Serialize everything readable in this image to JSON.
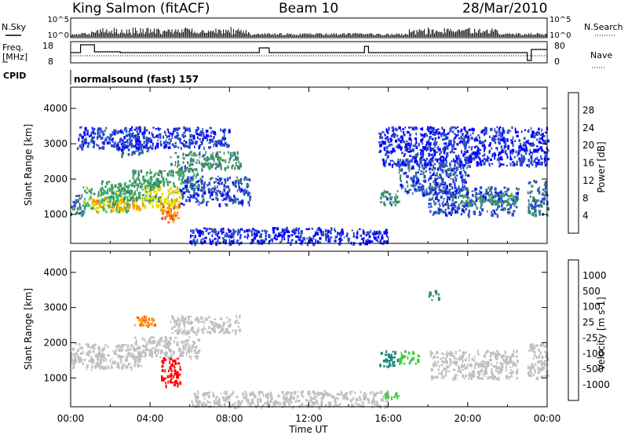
{
  "header": {
    "site": "King Salmon (fitACF)",
    "beam": "Beam 10",
    "date": "28/Mar/2010"
  },
  "aux_panels": {
    "nsky_label": "N.Sky",
    "nsearch_label": "N.Search",
    "noise_ticks_left": [
      "10^5",
      "10^0"
    ],
    "noise_ticks_right": [
      "10^5",
      "10^0"
    ],
    "freq_label_line1": "Freq.",
    "freq_label_line2": "[MHz]",
    "freq_ticks": [
      "18",
      "8"
    ],
    "nave_label": "Nave",
    "nave_ticks": [
      "80",
      "0"
    ],
    "cpid_label": "CPID",
    "cpid_text": "normalsound (fast) 157"
  },
  "colors": {
    "power_scale": [
      "#0000ff",
      "#2c4ec8",
      "#3c8a6a",
      "#40b060",
      "#f0e000",
      "#ff9a00",
      "#ff5000",
      "#ff0000"
    ],
    "velocity_scale": [
      "#ff0000",
      "#ff5a00",
      "#ffa000",
      "#c0c0c0",
      "#c0c0c0",
      "#40d040",
      "#208a7a",
      "#2a3ab0",
      "#0000dd"
    ],
    "ground_scatter": "#c0c0c0"
  },
  "chart_data": [
    {
      "type": "heatmap",
      "name_panel": "power",
      "xlabel": "",
      "ylabel": "Slant Range [km]",
      "x_ticks": [
        "00:00",
        "04:00",
        "08:00",
        "12:00",
        "16:00",
        "20:00",
        "00:00"
      ],
      "y_ticks": [
        "1000",
        "2000",
        "3000",
        "4000"
      ],
      "xlim_hours": [
        0,
        24
      ],
      "ylim_km": [
        180,
        4600
      ],
      "colorbar": {
        "label": "Power [dB]",
        "ticks": [
          "4",
          "8",
          "12",
          "16",
          "20",
          "24",
          "28"
        ],
        "range": [
          0,
          32
        ]
      },
      "regions": [
        {
          "t0": 0.0,
          "t1": 0.6,
          "r0": 1000,
          "r1": 1650,
          "v": 8
        },
        {
          "t0": 0.6,
          "t1": 3.0,
          "r0": 1100,
          "r1": 1800,
          "v": 14
        },
        {
          "t0": 1.0,
          "t1": 3.5,
          "r0": 1150,
          "r1": 1500,
          "v": 20
        },
        {
          "t0": 1.5,
          "t1": 4.5,
          "r0": 1400,
          "r1": 2000,
          "v": 12
        },
        {
          "t0": 3.5,
          "t1": 5.5,
          "r0": 1200,
          "r1": 1800,
          "v": 18
        },
        {
          "t0": 4.5,
          "t1": 5.5,
          "r0": 800,
          "r1": 1300,
          "v": 24
        },
        {
          "t0": 3.0,
          "t1": 6.5,
          "r0": 1800,
          "r1": 2300,
          "v": 12
        },
        {
          "t0": 5.0,
          "t1": 8.5,
          "r0": 2300,
          "r1": 2800,
          "v": 10
        },
        {
          "t0": 2.5,
          "t1": 4.0,
          "r0": 2700,
          "r1": 3300,
          "v": 6
        },
        {
          "t0": 0.3,
          "t1": 8.0,
          "r0": 2900,
          "r1": 3500,
          "v": 5
        },
        {
          "t0": 5.5,
          "t1": 9.0,
          "r0": 1300,
          "r1": 2100,
          "v": 6
        },
        {
          "t0": 6.0,
          "t1": 16.0,
          "r0": 200,
          "r1": 650,
          "v": 4
        },
        {
          "t0": 15.5,
          "t1": 16.5,
          "r0": 1300,
          "r1": 1700,
          "v": 10
        },
        {
          "t0": 16.5,
          "t1": 20.0,
          "r0": 1600,
          "r1": 2600,
          "v": 6
        },
        {
          "t0": 18.0,
          "t1": 22.5,
          "r0": 1000,
          "r1": 1800,
          "v": 6
        },
        {
          "t0": 19.5,
          "t1": 22.5,
          "r0": 1300,
          "r1": 1600,
          "v": 11
        },
        {
          "t0": 23.0,
          "t1": 24.0,
          "r0": 1000,
          "r1": 2000,
          "v": 8
        },
        {
          "t0": 15.5,
          "t1": 24.0,
          "r0": 2400,
          "r1": 3500,
          "v": 4
        }
      ]
    },
    {
      "type": "heatmap",
      "name_panel": "velocity",
      "xlabel": "Time UT",
      "ylabel": "Slant Range [km]",
      "x_ticks": [
        "00:00",
        "04:00",
        "08:00",
        "12:00",
        "16:00",
        "20:00",
        "00:00"
      ],
      "y_ticks": [
        "1000",
        "2000",
        "3000",
        "4000"
      ],
      "xlim_hours": [
        0,
        24
      ],
      "ylim_km": [
        180,
        4600
      ],
      "colorbar": {
        "label": "Velocity [m s-1]",
        "ticks": [
          "-1000",
          "-500",
          "-100",
          "-25",
          "25",
          "100",
          "500",
          "1000"
        ]
      },
      "regions": [
        {
          "t0": 0.0,
          "t1": 3.5,
          "r0": 1300,
          "r1": 2000,
          "v": 0
        },
        {
          "t0": 3.0,
          "t1": 6.5,
          "r0": 1600,
          "r1": 2200,
          "v": 0
        },
        {
          "t0": 5.0,
          "t1": 8.5,
          "r0": 2300,
          "r1": 2800,
          "v": 0
        },
        {
          "t0": 4.5,
          "t1": 5.5,
          "r0": 800,
          "r1": 1600,
          "v": -900
        },
        {
          "t0": 3.2,
          "t1": 4.2,
          "r0": 2500,
          "r1": 2800,
          "v": -300
        },
        {
          "t0": 6.0,
          "t1": 16.0,
          "r0": 200,
          "r1": 650,
          "v": 0
        },
        {
          "t0": 15.5,
          "t1": 16.5,
          "r0": 1300,
          "r1": 1800,
          "v": 300
        },
        {
          "t0": 16.5,
          "t1": 17.5,
          "r0": 1400,
          "r1": 1800,
          "v": 120
        },
        {
          "t0": 15.8,
          "t1": 16.8,
          "r0": 450,
          "r1": 650,
          "v": 100
        },
        {
          "t0": 18.0,
          "t1": 22.5,
          "r0": 1000,
          "r1": 1800,
          "v": 0
        },
        {
          "t0": 23.0,
          "t1": 24.0,
          "r0": 1000,
          "r1": 2000,
          "v": 0
        },
        {
          "t0": 18.0,
          "t1": 18.5,
          "r0": 3200,
          "r1": 3500,
          "v": 600
        }
      ]
    },
    {
      "type": "line",
      "name_panel": "frequency",
      "ylabel": "Freq. [MHz]",
      "ylim": [
        8,
        18
      ],
      "x": [
        0,
        0.5,
        0.5,
        1.2,
        1.2,
        2.5,
        2.5,
        9.5,
        9.5,
        10.0,
        10.0,
        14.8,
        14.8,
        15.0,
        15.0,
        23.0,
        23.0,
        23.2,
        23.2,
        24
      ],
      "y": [
        13,
        13,
        18,
        18,
        13.5,
        13.5,
        13,
        13,
        16,
        16,
        13,
        13,
        17,
        17,
        13,
        13,
        8,
        8,
        15,
        15
      ]
    }
  ]
}
